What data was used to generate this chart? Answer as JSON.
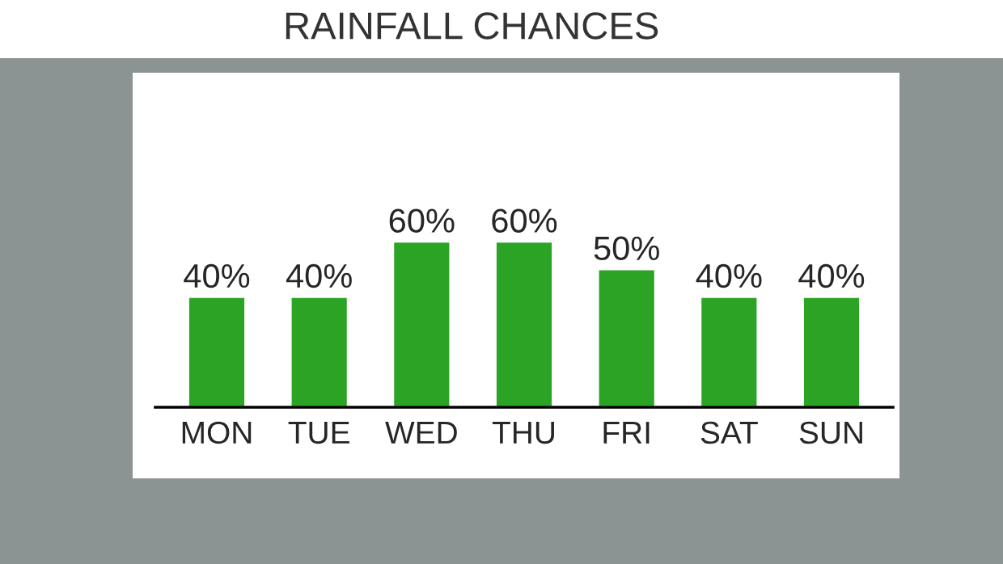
{
  "chart_data": {
    "type": "bar",
    "title": "RAINFALL CHANCES",
    "categories": [
      "MON",
      "TUE",
      "WED",
      "THU",
      "FRI",
      "SAT",
      "SUN"
    ],
    "values": [
      40,
      40,
      60,
      60,
      50,
      40,
      40
    ],
    "value_labels": [
      "40%",
      "40%",
      "60%",
      "60%",
      "50%",
      "40%",
      "40%"
    ],
    "color": "#2ba324",
    "grid": false,
    "legend": false
  }
}
